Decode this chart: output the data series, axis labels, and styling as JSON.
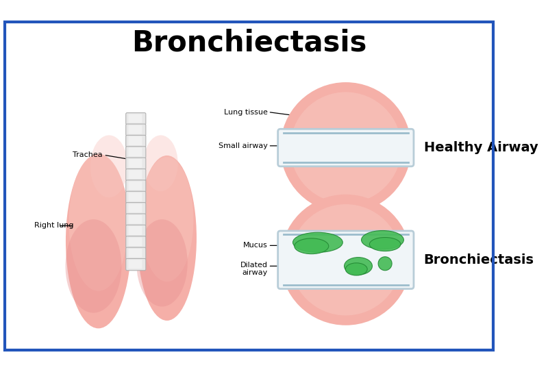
{
  "title": "Bronchiectasis",
  "title_fontsize": 30,
  "title_fontweight": "bold",
  "bg_color": "#ffffff",
  "border_color": "#2255bb",
  "lung_pink_light": "#f5b0a8",
  "lung_pink_mid": "#f09090",
  "lung_pink_dark": "#e07575",
  "trachea_light": "#e8e8e8",
  "trachea_dark": "#c0c0c0",
  "airway_bg": "#e8f2f5",
  "airway_border": "#aabbcc",
  "arrow_color": "#3388bb",
  "mucus_color": "#44bb55",
  "mucus_edge": "#228833",
  "healthy_label": "Healthy Airway",
  "bronchiectasis_label": "Bronchiectasis",
  "label_fontsize": 14,
  "ann_fontsize": 8,
  "circle_pink": "#f5aaaa"
}
